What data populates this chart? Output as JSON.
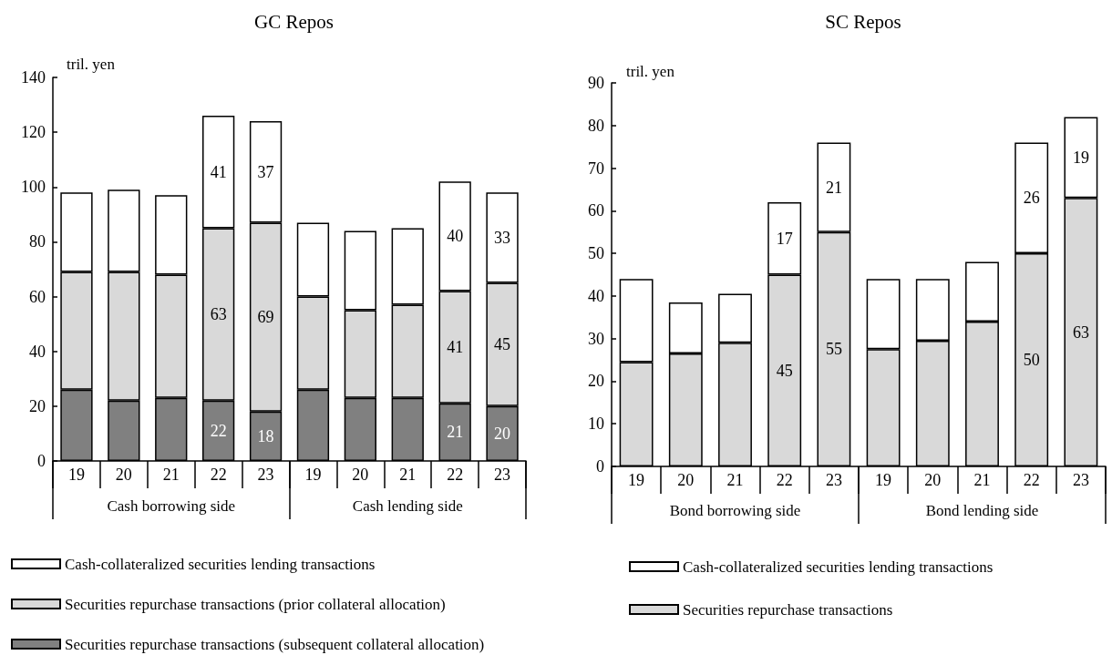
{
  "chart_data": [
    {
      "type": "bar",
      "title": "GC Repos",
      "ylabel": "tril. yen",
      "stacked": true,
      "legend": "bottom left",
      "categories": [
        "19",
        "20",
        "21",
        "22",
        "23",
        "19",
        "20",
        "21",
        "22",
        "23"
      ],
      "annotations": [
        "Cash borrowing side",
        "Cash lending side"
      ],
      "ylim": [
        0,
        140
      ],
      "yticks": [
        0,
        20,
        40,
        60,
        80,
        100,
        120,
        140
      ],
      "series": [
        {
          "name": "Securities repurchase transactions (subsequent collateral allocation)",
          "color": "#808080",
          "values": [
            26,
            22,
            23,
            22,
            18,
            26,
            23,
            23,
            21,
            20
          ],
          "value_labels": [
            null,
            null,
            null,
            "22",
            "18",
            null,
            null,
            null,
            "21",
            "20"
          ]
        },
        {
          "name": "Securities repurchase transactions (prior collateral allocation)",
          "color": "#d9d9d9",
          "values": [
            43,
            47,
            45,
            63,
            69,
            34,
            32,
            34,
            41,
            45
          ],
          "value_labels": [
            null,
            null,
            null,
            "63",
            "69",
            null,
            null,
            null,
            "41",
            "45"
          ]
        },
        {
          "name": "Cash-collateralized securities lending transactions",
          "color": "#ffffff",
          "values": [
            29,
            30,
            29,
            41,
            37,
            27,
            29,
            28,
            40,
            33
          ],
          "value_labels": [
            null,
            null,
            null,
            "41",
            "37",
            null,
            null,
            null,
            "40",
            "33"
          ]
        }
      ]
    },
    {
      "type": "bar",
      "title": "SC Repos",
      "ylabel": "tril. yen",
      "stacked": true,
      "legend": "bottom left",
      "categories": [
        "19",
        "20",
        "21",
        "22",
        "23",
        "19",
        "20",
        "21",
        "22",
        "23"
      ],
      "annotations": [
        "Bond borrowing side",
        "Bond lending side"
      ],
      "ylim": [
        0,
        90
      ],
      "yticks": [
        0,
        10,
        20,
        30,
        40,
        50,
        60,
        70,
        80,
        90
      ],
      "series": [
        {
          "name": "Securities repurchase transactions",
          "color": "#d9d9d9",
          "values": [
            24.5,
            26.5,
            29,
            45,
            55,
            27.5,
            29.5,
            34,
            50,
            63
          ],
          "value_labels": [
            null,
            null,
            null,
            "45",
            "55",
            null,
            null,
            null,
            "50",
            "63"
          ]
        },
        {
          "name": "Cash-collateralized securities lending transactions",
          "color": "#ffffff",
          "values": [
            19.5,
            12,
            11.5,
            17,
            21,
            16.5,
            14.5,
            14,
            26,
            19
          ],
          "value_labels": [
            null,
            null,
            null,
            "17",
            "21",
            null,
            null,
            null,
            "26",
            "19"
          ]
        }
      ]
    }
  ]
}
